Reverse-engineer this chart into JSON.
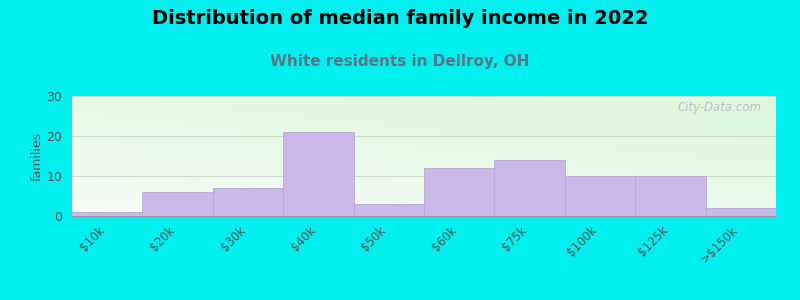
{
  "title": "Distribution of median family income in 2022",
  "subtitle": "White residents in Dellroy, OH",
  "categories": [
    "$10k",
    "$20k",
    "$30k",
    "$40k",
    "$50k",
    "$60k",
    "$75k",
    "$100k",
    "$125k",
    ">$150k"
  ],
  "values": [
    1,
    6,
    7,
    21,
    3,
    12,
    14,
    10,
    10,
    2
  ],
  "bar_color": "#c9b8e8",
  "bar_edgecolor": "#b8a8d8",
  "background_color": "#00f0f0",
  "title_fontsize": 14,
  "subtitle_fontsize": 11,
  "subtitle_color": "#557788",
  "ylabel": "families",
  "ylim": [
    0,
    30
  ],
  "yticks": [
    0,
    10,
    20,
    30
  ],
  "watermark": "City-Data.com",
  "watermark_color": "#aabbcc",
  "grid_color": "#ccddcc",
  "tick_label_color": "#555555"
}
